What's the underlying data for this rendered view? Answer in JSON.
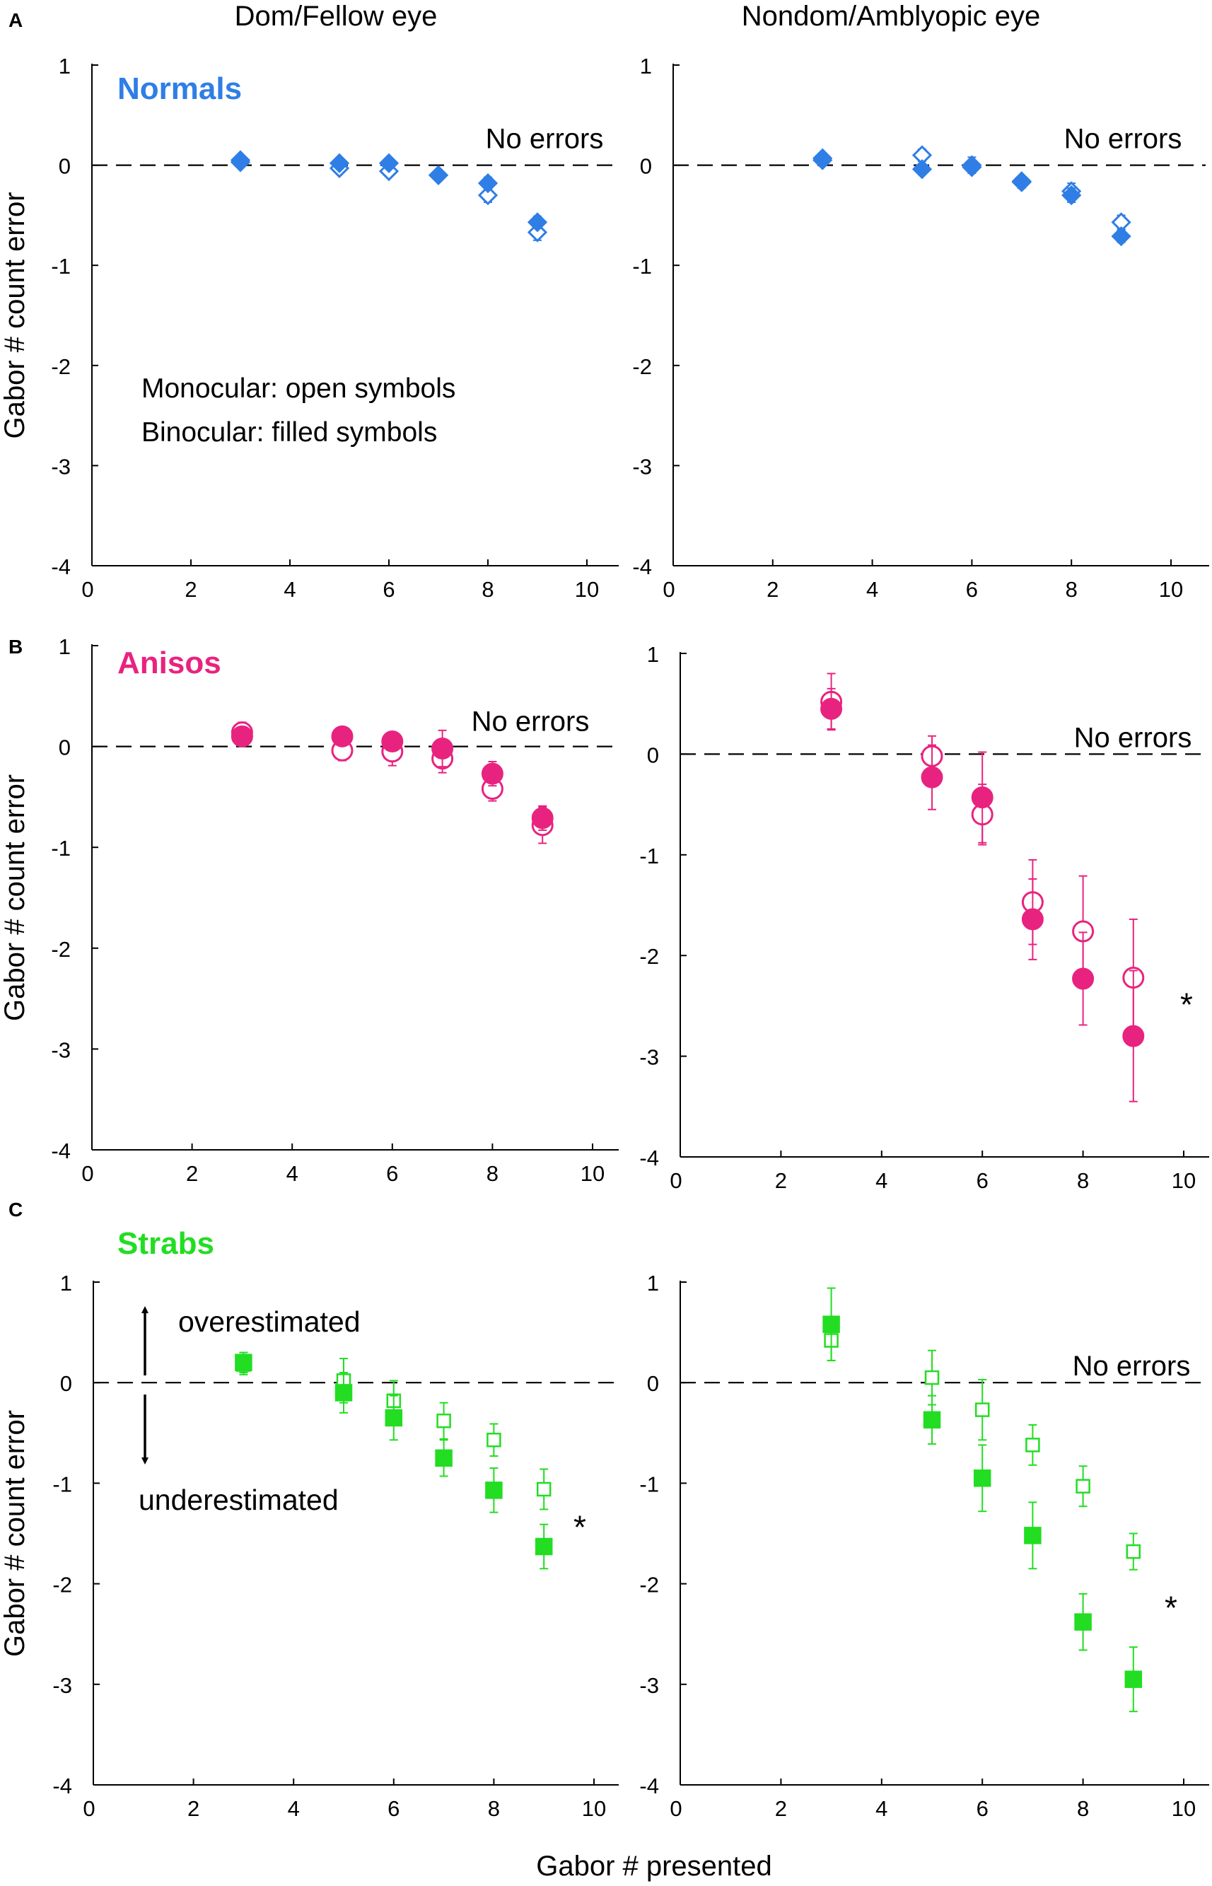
{
  "figure": {
    "columns": [
      "Dom/Fellow eye",
      "Nondom/Amblyopic eye"
    ],
    "shared_xlabel": "Gabor # presented",
    "legend": {
      "line1": "Monocular: open symbols",
      "line2": "Binocular: filled symbols"
    },
    "arrows": {
      "up": "overestimated",
      "down": "underestimated"
    }
  },
  "chart_data": [
    {
      "id": "A-left",
      "panel_label": "A",
      "group": "Normals",
      "eye": "Dom/Fellow eye",
      "type": "scatter",
      "marker": "diamond",
      "color": "#2f7ee6",
      "ylabel": "Gabor # count error",
      "xlim": [
        0,
        10
      ],
      "ylim": [
        -4,
        1
      ],
      "xticks": [
        0,
        2,
        4,
        6,
        8,
        10
      ],
      "yticks": [
        1,
        0,
        -1,
        -2,
        -3,
        -4
      ],
      "reference": {
        "y": 0,
        "label": "No errors"
      },
      "asterisk": "",
      "series": [
        {
          "name": "Monocular",
          "style": "open",
          "points": [
            {
              "x": 3,
              "y": 0.03,
              "err": 0.04
            },
            {
              "x": 5,
              "y": -0.03,
              "err": 0.04
            },
            {
              "x": 6,
              "y": -0.06,
              "err": 0.04
            },
            {
              "x": 7,
              "y": -0.1,
              "err": 0.05
            },
            {
              "x": 8,
              "y": -0.3,
              "err": 0.07
            },
            {
              "x": 9,
              "y": -0.67,
              "err": 0.08
            }
          ]
        },
        {
          "name": "Binocular",
          "style": "filled",
          "points": [
            {
              "x": 3,
              "y": 0.05,
              "err": 0.04
            },
            {
              "x": 5,
              "y": 0.02,
              "err": 0.04
            },
            {
              "x": 6,
              "y": 0.02,
              "err": 0.04
            },
            {
              "x": 7,
              "y": -0.1,
              "err": 0.05
            },
            {
              "x": 8,
              "y": -0.18,
              "err": 0.06
            },
            {
              "x": 9,
              "y": -0.57,
              "err": 0.06
            }
          ]
        }
      ]
    },
    {
      "id": "A-right",
      "panel_label": "",
      "group": "",
      "eye": "Nondom/Amblyopic eye",
      "type": "scatter",
      "marker": "diamond",
      "color": "#2f7ee6",
      "ylabel": "",
      "xlim": [
        0,
        10
      ],
      "ylim": [
        -4,
        1
      ],
      "xticks": [
        0,
        2,
        4,
        6,
        8,
        10
      ],
      "yticks": [
        1,
        0,
        -1,
        -2,
        -3,
        -4
      ],
      "reference": {
        "y": 0,
        "label": "No errors"
      },
      "asterisk": "",
      "series": [
        {
          "name": "Monocular",
          "style": "open",
          "points": [
            {
              "x": 3,
              "y": 0.05,
              "err": 0.04
            },
            {
              "x": 5,
              "y": 0.1,
              "err": 0.06
            },
            {
              "x": 6,
              "y": -0.02,
              "err": 0.06
            },
            {
              "x": 7,
              "y": -0.16,
              "err": 0.05
            },
            {
              "x": 8,
              "y": -0.26,
              "err": 0.08
            },
            {
              "x": 9,
              "y": -0.57,
              "err": 0.07
            }
          ]
        },
        {
          "name": "Binocular",
          "style": "filled",
          "points": [
            {
              "x": 3,
              "y": 0.07,
              "err": 0.04
            },
            {
              "x": 5,
              "y": -0.04,
              "err": 0.05
            },
            {
              "x": 6,
              "y": 0.0,
              "err": 0.08
            },
            {
              "x": 7,
              "y": -0.17,
              "err": 0.06
            },
            {
              "x": 8,
              "y": -0.3,
              "err": 0.07
            },
            {
              "x": 9,
              "y": -0.71,
              "err": 0.06
            }
          ]
        }
      ]
    },
    {
      "id": "B-left",
      "panel_label": "B",
      "group": "Anisos",
      "eye": "Dom/Fellow eye",
      "type": "scatter",
      "marker": "circle",
      "color": "#e8237f",
      "ylabel": "Gabor # count error",
      "xlim": [
        0,
        10
      ],
      "ylim": [
        -4,
        1
      ],
      "xticks": [
        0,
        2,
        4,
        6,
        8,
        10
      ],
      "yticks": [
        1,
        0,
        -1,
        -2,
        -3,
        -4
      ],
      "reference": {
        "y": 0,
        "label": "No errors"
      },
      "asterisk": "",
      "series": [
        {
          "name": "Monocular",
          "style": "open",
          "points": [
            {
              "x": 3,
              "y": 0.14,
              "err": 0.1
            },
            {
              "x": 5,
              "y": -0.04,
              "err": 0.1
            },
            {
              "x": 6,
              "y": -0.05,
              "err": 0.14
            },
            {
              "x": 7,
              "y": -0.12,
              "err": 0.14
            },
            {
              "x": 8,
              "y": -0.42,
              "err": 0.12
            },
            {
              "x": 9,
              "y": -0.78,
              "err": 0.18
            }
          ]
        },
        {
          "name": "Binocular",
          "style": "filled",
          "points": [
            {
              "x": 3,
              "y": 0.1,
              "err": 0.06
            },
            {
              "x": 5,
              "y": 0.1,
              "err": 0.06
            },
            {
              "x": 6,
              "y": 0.05,
              "err": 0.06
            },
            {
              "x": 7,
              "y": -0.02,
              "err": 0.18
            },
            {
              "x": 8,
              "y": -0.27,
              "err": 0.12
            },
            {
              "x": 9,
              "y": -0.71,
              "err": 0.12
            }
          ]
        }
      ]
    },
    {
      "id": "B-right",
      "panel_label": "",
      "group": "",
      "eye": "Nondom/Amblyopic eye",
      "type": "scatter",
      "marker": "circle",
      "color": "#e8237f",
      "ylabel": "",
      "xlim": [
        0,
        10
      ],
      "ylim": [
        -4,
        1
      ],
      "xticks": [
        0,
        2,
        4,
        6,
        8,
        10
      ],
      "yticks": [
        1,
        0,
        -1,
        -2,
        -3,
        -4
      ],
      "reference": {
        "y": 0,
        "label": "No errors"
      },
      "asterisk": "*",
      "series": [
        {
          "name": "Monocular",
          "style": "open",
          "points": [
            {
              "x": 3,
              "y": 0.52,
              "err": 0.28
            },
            {
              "x": 5,
              "y": -0.02,
              "err": 0.2
            },
            {
              "x": 6,
              "y": -0.6,
              "err": 0.3
            },
            {
              "x": 7,
              "y": -1.47,
              "err": 0.42
            },
            {
              "x": 8,
              "y": -1.76,
              "err": 0.55
            },
            {
              "x": 9,
              "y": -2.22,
              "err": 0.58
            }
          ]
        },
        {
          "name": "Binocular",
          "style": "filled",
          "points": [
            {
              "x": 3,
              "y": 0.45,
              "err": 0.2
            },
            {
              "x": 5,
              "y": -0.23,
              "err": 0.32
            },
            {
              "x": 6,
              "y": -0.43,
              "err": 0.45
            },
            {
              "x": 7,
              "y": -1.64,
              "err": 0.4
            },
            {
              "x": 8,
              "y": -2.23,
              "err": 0.46
            },
            {
              "x": 9,
              "y": -2.8,
              "err": 0.65
            }
          ]
        }
      ]
    },
    {
      "id": "C-left",
      "panel_label": "C",
      "group": "Strabs",
      "eye": "Dom/Fellow eye",
      "type": "scatter",
      "marker": "square",
      "color": "#22dd22",
      "ylabel": "Gabor # count error",
      "xlim": [
        0,
        10
      ],
      "ylim": [
        -4,
        1
      ],
      "xticks": [
        0,
        2,
        4,
        6,
        8,
        10
      ],
      "yticks": [
        1,
        0,
        -1,
        -2,
        -3,
        -4
      ],
      "reference": {
        "y": 0,
        "label": ""
      },
      "asterisk": "*",
      "series": [
        {
          "name": "Monocular",
          "style": "open",
          "points": [
            {
              "x": 3,
              "y": 0.18,
              "err": 0.1
            },
            {
              "x": 5,
              "y": 0.02,
              "err": 0.22
            },
            {
              "x": 6,
              "y": -0.18,
              "err": 0.2
            },
            {
              "x": 7,
              "y": -0.38,
              "err": 0.18
            },
            {
              "x": 8,
              "y": -0.57,
              "err": 0.16
            },
            {
              "x": 9,
              "y": -1.06,
              "err": 0.2
            }
          ]
        },
        {
          "name": "Binocular",
          "style": "filled",
          "points": [
            {
              "x": 3,
              "y": 0.2,
              "err": 0.1
            },
            {
              "x": 5,
              "y": -0.1,
              "err": 0.2
            },
            {
              "x": 6,
              "y": -0.35,
              "err": 0.22
            },
            {
              "x": 7,
              "y": -0.75,
              "err": 0.18
            },
            {
              "x": 8,
              "y": -1.07,
              "err": 0.22
            },
            {
              "x": 9,
              "y": -1.63,
              "err": 0.22
            }
          ]
        }
      ]
    },
    {
      "id": "C-right",
      "panel_label": "",
      "group": "",
      "eye": "Nondom/Amblyopic eye",
      "type": "scatter",
      "marker": "square",
      "color": "#22dd22",
      "ylabel": "",
      "xlim": [
        0,
        10
      ],
      "ylim": [
        -4,
        1
      ],
      "xticks": [
        0,
        2,
        4,
        6,
        8,
        10
      ],
      "yticks": [
        1,
        0,
        -1,
        -2,
        -3,
        -4
      ],
      "reference": {
        "y": 0,
        "label": "No errors"
      },
      "asterisk": "*",
      "series": [
        {
          "name": "Monocular",
          "style": "open",
          "points": [
            {
              "x": 3,
              "y": 0.42,
              "err": 0.2
            },
            {
              "x": 5,
              "y": 0.05,
              "err": 0.27
            },
            {
              "x": 6,
              "y": -0.27,
              "err": 0.3
            },
            {
              "x": 7,
              "y": -0.62,
              "err": 0.2
            },
            {
              "x": 8,
              "y": -1.03,
              "err": 0.2
            },
            {
              "x": 9,
              "y": -1.68,
              "err": 0.18
            }
          ]
        },
        {
          "name": "Binocular",
          "style": "filled",
          "points": [
            {
              "x": 3,
              "y": 0.58,
              "err": 0.36
            },
            {
              "x": 5,
              "y": -0.37,
              "err": 0.24
            },
            {
              "x": 6,
              "y": -0.95,
              "err": 0.33
            },
            {
              "x": 7,
              "y": -1.52,
              "err": 0.33
            },
            {
              "x": 8,
              "y": -2.38,
              "err": 0.28
            },
            {
              "x": 9,
              "y": -2.95,
              "err": 0.32
            }
          ]
        }
      ]
    }
  ]
}
